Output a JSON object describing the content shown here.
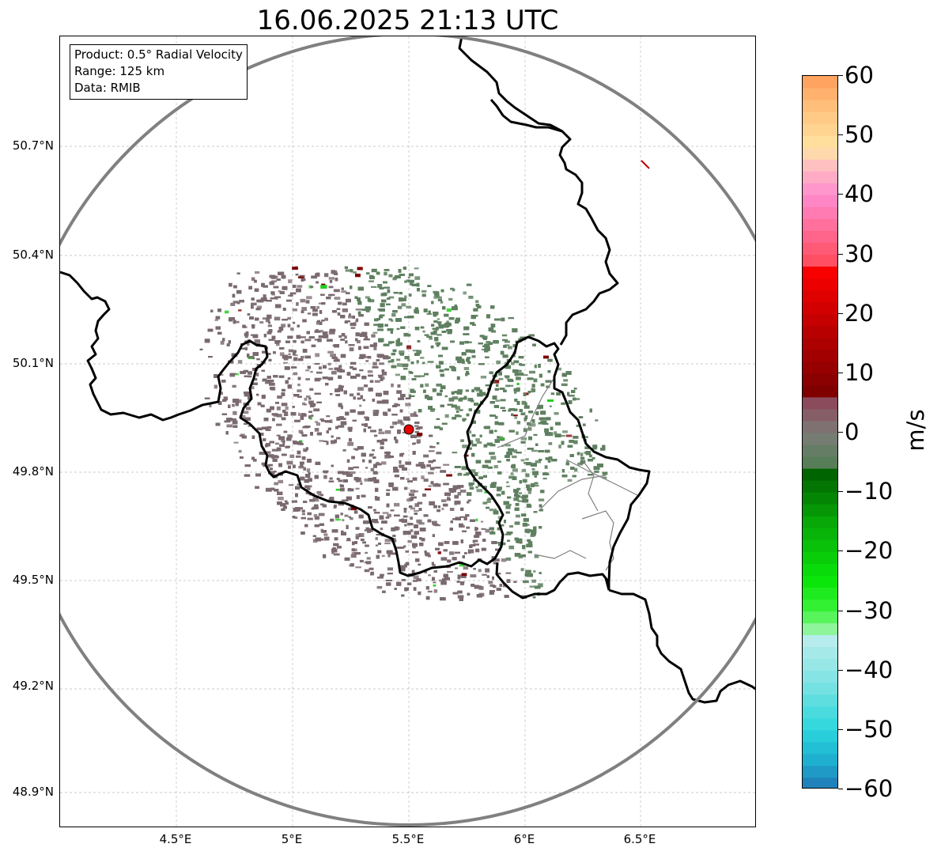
{
  "title": "16.06.2025 21:13 UTC",
  "info": {
    "product": "Product: 0.5° Radial Velocity",
    "range": "Range: 125 km",
    "data": "Data: RMIB"
  },
  "map": {
    "lat_ticks": [
      "50.7°N",
      "50.4°N",
      "50.1°N",
      "49.8°N",
      "49.5°N",
      "49.2°N",
      "48.9°N"
    ],
    "lon_ticks": [
      "4.5°E",
      "5°E",
      "5.5°E",
      "6°E",
      "6.5°E"
    ],
    "radar_site": {
      "lon": 5.5,
      "lat": 49.91
    },
    "range_ring_color": "#808080",
    "border_color": "#000000",
    "grid": true,
    "echo_colors": {
      "inbound": "#5f8060",
      "outbound": "#7a6a70",
      "strong_outbound": "#7b0000",
      "strong_inbound": "#1ecf1e"
    }
  },
  "colorbar": {
    "label": "m/s",
    "min": -60,
    "max": 60,
    "ticks": [
      "60",
      "50",
      "40",
      "30",
      "20",
      "10",
      "0",
      "−10",
      "−20",
      "−30",
      "−40",
      "−50",
      "−60"
    ],
    "stops": [
      {
        "v": -60,
        "c": "#1f77b4"
      },
      {
        "v": -55,
        "c": "#1fb0d0"
      },
      {
        "v": -50,
        "c": "#2ad6dc"
      },
      {
        "v": -42,
        "c": "#7fe3e3"
      },
      {
        "v": -35,
        "c": "#b6ecec"
      },
      {
        "v": -33,
        "c": "#8ef59a"
      },
      {
        "v": -30,
        "c": "#3cf33c"
      },
      {
        "v": -25,
        "c": "#0ae60a"
      },
      {
        "v": -15,
        "c": "#07a807"
      },
      {
        "v": -7,
        "c": "#006400"
      },
      {
        "v": -6,
        "c": "#4f7f52"
      },
      {
        "v": 0,
        "c": "#7c7b78"
      },
      {
        "v": 5,
        "c": "#8b4b5c"
      },
      {
        "v": 6,
        "c": "#7a0000"
      },
      {
        "v": 15,
        "c": "#ad0000"
      },
      {
        "v": 22,
        "c": "#d80000"
      },
      {
        "v": 28,
        "c": "#ff0000"
      },
      {
        "v": 29,
        "c": "#ff4f62"
      },
      {
        "v": 40,
        "c": "#ff8ccf"
      },
      {
        "v": 45,
        "c": "#ffc0c0"
      },
      {
        "v": 48,
        "c": "#ffe4a0"
      },
      {
        "v": 55,
        "c": "#ffbf7a"
      },
      {
        "v": 60,
        "c": "#ff9c5a"
      }
    ]
  }
}
